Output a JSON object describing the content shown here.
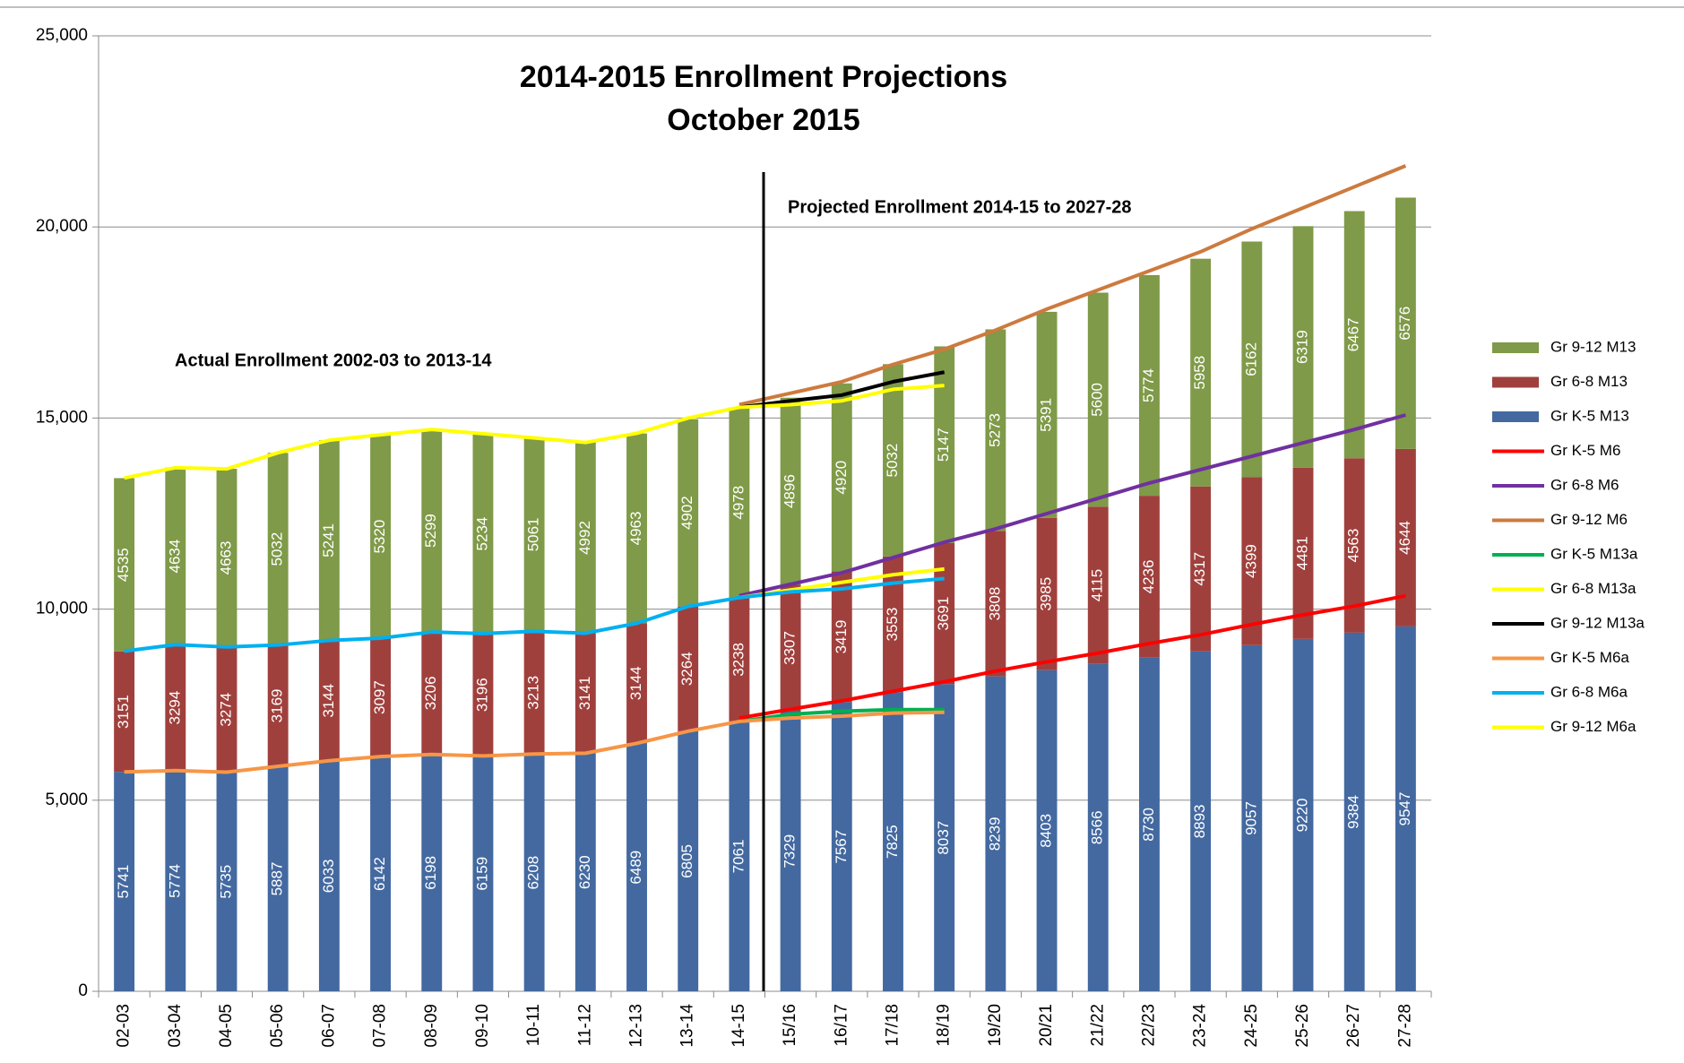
{
  "chart_data": {
    "type": "bar",
    "stacked": true,
    "title": [
      "2014-2015  Enrollment Projections",
      "October 2015"
    ],
    "annotations": [
      "Projected Enrollment  2014-15   to 2027-28",
      "Actual Enrollment 2002-03  to 2013-14"
    ],
    "categories": [
      "02-03",
      "03-04",
      "04-05",
      "05-06",
      "06-07",
      "07-08",
      "08-09",
      "09-10",
      "10-11",
      "11-12",
      "12-13",
      "13-14",
      "14-15",
      "15/16",
      "16/17",
      "17/18",
      "18/19",
      "19/20",
      "20/21",
      "21/22",
      "22/23",
      "23-24",
      "24-25",
      "25-26",
      "26-27",
      "27-28"
    ],
    "ylim": [
      0,
      25000
    ],
    "yticks": [
      0,
      {
        "value": 5000,
        "label": "5,000"
      },
      {
        "value": 10000,
        "label": "10,000"
      },
      {
        "value": 15000,
        "label": "15,000"
      },
      {
        "value": 20000,
        "label": "20,000"
      },
      {
        "value": 25000,
        "label": "25,000"
      }
    ],
    "grid": true,
    "legend": "right",
    "series": [
      {
        "name": "Gr 9-12 M13",
        "kind": "bar",
        "color": "#7f9a48",
        "values": [
          4535,
          4634,
          4663,
          5032,
          5241,
          5320,
          5299,
          5234,
          5061,
          4992,
          4963,
          4902,
          4978,
          4896,
          4920,
          5032,
          5147,
          5273,
          5391,
          5600,
          5774,
          5958,
          6162,
          6319,
          6467,
          6576
        ]
      },
      {
        "name": "Gr 6-8 M13",
        "kind": "bar",
        "color": "#a0403d",
        "values": [
          3151,
          3294,
          3274,
          3169,
          3144,
          3097,
          3206,
          3196,
          3213,
          3141,
          3144,
          3264,
          3238,
          3307,
          3419,
          3553,
          3691,
          3808,
          3985,
          4115,
          4236,
          4317,
          4399,
          4481,
          4563,
          4644
        ]
      },
      {
        "name": "Gr K-5 M13",
        "kind": "bar",
        "color": "#4369a0",
        "values": [
          5741,
          5774,
          5735,
          5887,
          6033,
          6142,
          6198,
          6159,
          6208,
          6230,
          6489,
          6805,
          7061,
          7329,
          7567,
          7825,
          8037,
          8239,
          8403,
          8566,
          8730,
          8893,
          9057,
          9220,
          9384,
          9547
        ]
      },
      {
        "name": "Gr K-5 M6",
        "kind": "line",
        "color": "#ff0000",
        "values": [
          null,
          null,
          null,
          null,
          null,
          null,
          null,
          null,
          null,
          null,
          null,
          null,
          7150,
          7380,
          7600,
          7850,
          8100,
          8380,
          8620,
          8850,
          9100,
          9330,
          9600,
          9850,
          10080,
          10350
        ]
      },
      {
        "name": "Gr 6-8 M6",
        "kind": "line",
        "color": "#7030a0",
        "values": [
          null,
          null,
          null,
          null,
          null,
          null,
          null,
          null,
          null,
          null,
          null,
          null,
          10350,
          10650,
          10950,
          11350,
          11750,
          12100,
          12500,
          12900,
          13300,
          13650,
          14000,
          14350,
          14700,
          15080
        ]
      },
      {
        "name": "Gr 9-12 M6",
        "kind": "line",
        "color": "#cd7a3e",
        "values": [
          null,
          null,
          null,
          null,
          null,
          null,
          null,
          null,
          null,
          null,
          null,
          null,
          15350,
          15650,
          15950,
          16400,
          16800,
          17300,
          17850,
          18350,
          18850,
          19350,
          19950,
          20500,
          21050,
          21600
        ]
      },
      {
        "name": "Gr K-5 M13a",
        "kind": "line",
        "color": "#00b050",
        "values": [
          null,
          null,
          null,
          null,
          null,
          null,
          null,
          null,
          null,
          null,
          null,
          null,
          7061,
          7250,
          7330,
          7370,
          7370,
          null,
          null,
          null,
          null,
          null,
          null,
          null,
          null,
          null
        ]
      },
      {
        "name": "Gr 6-8 M13a",
        "kind": "line",
        "color": "#ffff00",
        "values": [
          null,
          null,
          null,
          null,
          null,
          null,
          null,
          null,
          null,
          null,
          null,
          null,
          10300,
          10500,
          10700,
          10900,
          11050,
          null,
          null,
          null,
          null,
          null,
          null,
          null,
          null,
          null
        ]
      },
      {
        "name": "Gr 9-12 M13a",
        "kind": "line",
        "color": "#000000",
        "values": [
          null,
          null,
          null,
          null,
          null,
          null,
          null,
          null,
          null,
          null,
          null,
          null,
          15280,
          15450,
          15600,
          15950,
          16200,
          null,
          null,
          null,
          null,
          null,
          null,
          null,
          null,
          null
        ]
      },
      {
        "name": "Gr K-5 M6a",
        "kind": "line",
        "color": "#f79646",
        "values": [
          5741,
          5774,
          5735,
          5887,
          6033,
          6142,
          6198,
          6159,
          6208,
          6230,
          6489,
          6805,
          7061,
          7150,
          7200,
          7280,
          7300,
          null,
          null,
          null,
          null,
          null,
          null,
          null,
          null,
          null
        ]
      },
      {
        "name": "Gr 6-8 M6a",
        "kind": "line",
        "color": "#00b0f0",
        "values": [
          8900,
          9070,
          9010,
          9060,
          9180,
          9240,
          9400,
          9360,
          9420,
          9370,
          9630,
          10070,
          10300,
          10450,
          10530,
          10680,
          10800,
          null,
          null,
          null,
          null,
          null,
          null,
          null,
          null,
          null
        ]
      },
      {
        "name": "Gr 9-12 M6a",
        "kind": "line",
        "color": "#ffff00",
        "values": [
          13430,
          13700,
          13670,
          14090,
          14420,
          14560,
          14700,
          14590,
          14480,
          14360,
          14600,
          15000,
          15280,
          15350,
          15450,
          15750,
          15850,
          null,
          null,
          null,
          null,
          null,
          null,
          null,
          null,
          null
        ]
      }
    ]
  }
}
